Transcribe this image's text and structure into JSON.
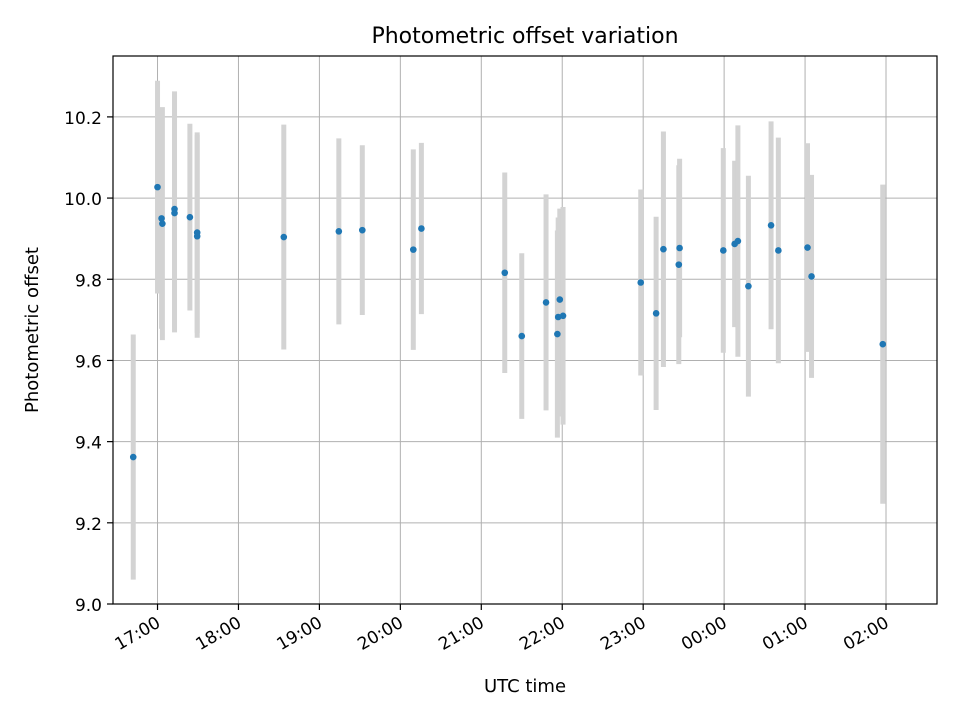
{
  "chart_data": {
    "type": "scatter",
    "title": "Photometric offset variation",
    "xlabel": "UTC time",
    "ylabel": "Photometric offset",
    "x_unit": "UTC hours, continuing past midnight (24.0 = 00:00 next day)",
    "xlim": [
      16.45,
      26.63
    ],
    "ylim": [
      9.0,
      10.35
    ],
    "grid": true,
    "x_ticks": [
      {
        "value": 17,
        "label": "17:00"
      },
      {
        "value": 18,
        "label": "18:00"
      },
      {
        "value": 19,
        "label": "19:00"
      },
      {
        "value": 20,
        "label": "20:00"
      },
      {
        "value": 21,
        "label": "21:00"
      },
      {
        "value": 22,
        "label": "22:00"
      },
      {
        "value": 23,
        "label": "23:00"
      },
      {
        "value": 24,
        "label": "00:00"
      },
      {
        "value": 25,
        "label": "01:00"
      },
      {
        "value": 26,
        "label": "02:00"
      }
    ],
    "y_ticks": [
      {
        "value": 9.0,
        "label": "9.0"
      },
      {
        "value": 9.2,
        "label": "9.2"
      },
      {
        "value": 9.4,
        "label": "9.4"
      },
      {
        "value": 9.6,
        "label": "9.6"
      },
      {
        "value": 9.8,
        "label": "9.8"
      },
      {
        "value": 10.0,
        "label": "10.0"
      },
      {
        "value": 10.2,
        "label": "10.2"
      }
    ],
    "colors": {
      "point": "#1f77b4",
      "errorbar": "#d3d3d3",
      "grid": "#b0b0b0"
    },
    "points": [
      {
        "x": 16.7,
        "y": 9.362,
        "err": 0.302
      },
      {
        "x": 17.0,
        "y": 10.027,
        "err": 0.262
      },
      {
        "x": 17.05,
        "y": 9.95,
        "err": 0.272
      },
      {
        "x": 17.06,
        "y": 9.937,
        "err": 0.287
      },
      {
        "x": 17.21,
        "y": 9.973,
        "err": 0.29
      },
      {
        "x": 17.21,
        "y": 9.963,
        "err": 0.294
      },
      {
        "x": 17.4,
        "y": 9.953,
        "err": 0.23
      },
      {
        "x": 17.49,
        "y": 9.915,
        "err": 0.247
      },
      {
        "x": 17.49,
        "y": 9.906,
        "err": 0.25
      },
      {
        "x": 18.56,
        "y": 9.904,
        "err": 0.277
      },
      {
        "x": 19.24,
        "y": 9.918,
        "err": 0.229
      },
      {
        "x": 19.53,
        "y": 9.921,
        "err": 0.209
      },
      {
        "x": 20.16,
        "y": 9.873,
        "err": 0.247
      },
      {
        "x": 20.26,
        "y": 9.925,
        "err": 0.211
      },
      {
        "x": 21.29,
        "y": 9.816,
        "err": 0.247
      },
      {
        "x": 21.5,
        "y": 9.66,
        "err": 0.204
      },
      {
        "x": 21.8,
        "y": 9.743,
        "err": 0.266
      },
      {
        "x": 21.94,
        "y": 9.665,
        "err": 0.255
      },
      {
        "x": 21.95,
        "y": 9.707,
        "err": 0.245
      },
      {
        "x": 21.97,
        "y": 9.75,
        "err": 0.224
      },
      {
        "x": 22.01,
        "y": 9.71,
        "err": 0.268
      },
      {
        "x": 22.97,
        "y": 9.792,
        "err": 0.229
      },
      {
        "x": 23.16,
        "y": 9.716,
        "err": 0.238
      },
      {
        "x": 23.25,
        "y": 9.874,
        "err": 0.29
      },
      {
        "x": 23.44,
        "y": 9.836,
        "err": 0.245
      },
      {
        "x": 23.45,
        "y": 9.877,
        "err": 0.22
      },
      {
        "x": 23.99,
        "y": 9.871,
        "err": 0.252
      },
      {
        "x": 24.13,
        "y": 9.887,
        "err": 0.205
      },
      {
        "x": 24.17,
        "y": 9.894,
        "err": 0.285
      },
      {
        "x": 24.3,
        "y": 9.783,
        "err": 0.272
      },
      {
        "x": 24.58,
        "y": 9.933,
        "err": 0.256
      },
      {
        "x": 24.67,
        "y": 9.871,
        "err": 0.278
      },
      {
        "x": 25.03,
        "y": 9.878,
        "err": 0.257
      },
      {
        "x": 25.08,
        "y": 9.807,
        "err": 0.25
      },
      {
        "x": 25.96,
        "y": 9.64,
        "err": 0.393
      }
    ]
  }
}
